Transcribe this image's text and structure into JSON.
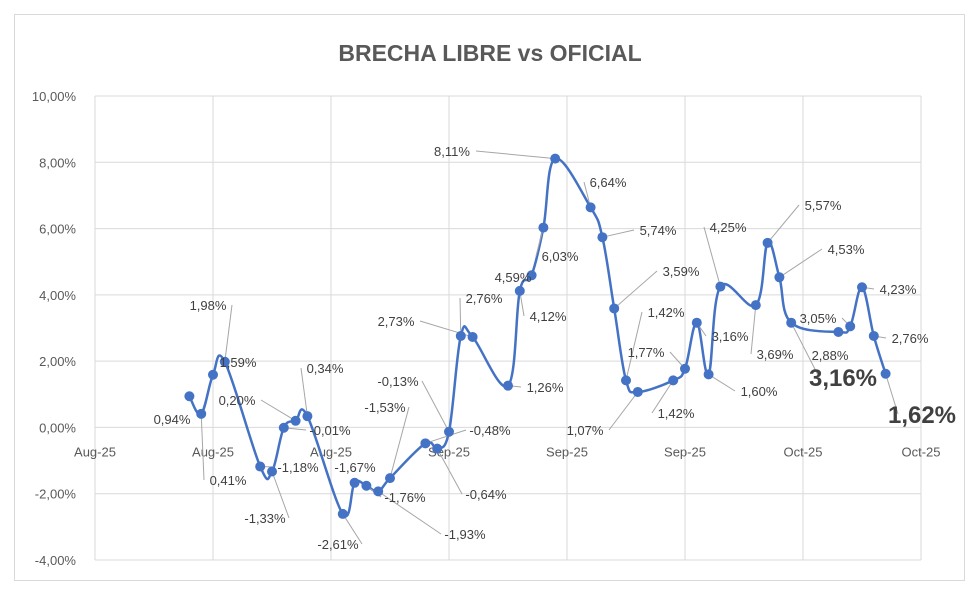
{
  "chart_data": {
    "type": "line",
    "title": "BRECHA LIBRE vs OFICIAL",
    "xlabel": "",
    "ylabel": "",
    "ylim": [
      -4,
      10
    ],
    "y_ticks": [
      "-4,00%",
      "-2,00%",
      "0,00%",
      "2,00%",
      "4,00%",
      "6,00%",
      "8,00%",
      "10,00%"
    ],
    "x_tick_labels": [
      "Aug-25",
      "Aug-25",
      "Aug-25",
      "Sep-25",
      "Sep-25",
      "Sep-25",
      "Oct-25",
      "Oct-25"
    ],
    "grid": true,
    "series": [
      {
        "name": "Brecha",
        "color": "#4472c4",
        "x": [
          8,
          9,
          10,
          11,
          14,
          15,
          16,
          17,
          18,
          21,
          22,
          23,
          24,
          25,
          28,
          29,
          30,
          31,
          32,
          35,
          36,
          37,
          38,
          39,
          42,
          43,
          44,
          45,
          46,
          49,
          50,
          51,
          52,
          53,
          56,
          57,
          58,
          59,
          63,
          64,
          65,
          66,
          67
        ],
        "values": [
          0.94,
          0.41,
          1.59,
          1.98,
          -1.18,
          -1.33,
          -0.01,
          0.2,
          0.34,
          -2.61,
          -1.67,
          -1.76,
          -1.93,
          -1.53,
          -0.48,
          -0.64,
          -0.13,
          2.76,
          2.73,
          1.26,
          4.12,
          4.59,
          6.03,
          8.11,
          6.64,
          5.74,
          3.59,
          1.42,
          1.07,
          1.42,
          1.77,
          3.16,
          1.6,
          4.25,
          3.69,
          5.57,
          4.53,
          3.16,
          2.88,
          3.05,
          4.23,
          2.76,
          1.62
        ],
        "labels": [
          "0,94%",
          "0,41%",
          "1,59%",
          "1,98%",
          "-1,18%",
          "-1,33%",
          "-0,01%",
          "0,20%",
          "0,34%",
          "-2,61%",
          "-1,67%",
          "-1,76%",
          "-1,93%",
          "-1,53%",
          "-0,48%",
          "-0,64%",
          "-0,13%",
          "2,76%",
          "2,73%",
          "1,26%",
          "4,12%",
          "4,59%",
          "6,03%",
          "8,11%",
          "6,64%",
          "5,74%",
          "3,59%",
          "1,42%",
          "1,07%",
          "1,42%",
          "1,77%",
          "3,16%",
          "1,60%",
          "4,25%",
          "3,69%",
          "5,57%",
          "4,53%",
          "3,16%",
          "2,88%",
          "3,05%",
          "4,23%",
          "2,76%",
          "1,62%"
        ]
      }
    ]
  }
}
